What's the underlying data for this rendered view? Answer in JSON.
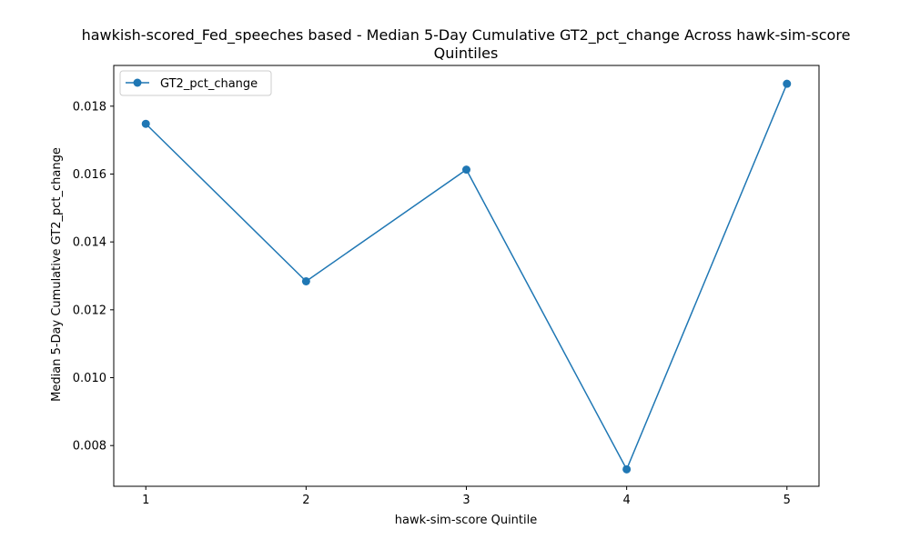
{
  "chart_data": {
    "type": "line",
    "title_line1": "hawkish-scored_Fed_speeches based - Median 5-Day Cumulative GT2_pct_change Across hawk-sim-score",
    "title_line2": "Quintiles",
    "xlabel": "hawk-sim-score Quintile",
    "ylabel": "Median 5-Day Cumulative GT2_pct_change",
    "x": [
      1,
      2,
      3,
      4,
      5
    ],
    "x_tick_labels": [
      "1",
      "2",
      "3",
      "4",
      "5"
    ],
    "xlim": [
      0.8,
      5.2
    ],
    "ylim": [
      0.0068,
      0.0192
    ],
    "y_ticks": [
      0.008,
      0.01,
      0.012,
      0.014,
      0.016,
      0.018
    ],
    "y_tick_labels": [
      "0.008",
      "0.010",
      "0.012",
      "0.014",
      "0.016",
      "0.018"
    ],
    "grid": false,
    "legend": "upper-left",
    "series": [
      {
        "name": "GT2_pct_change",
        "color": "#1f77b4",
        "marker": "circle",
        "values": [
          0.01748,
          0.01284,
          0.01613,
          0.0073,
          0.01866
        ]
      }
    ]
  }
}
